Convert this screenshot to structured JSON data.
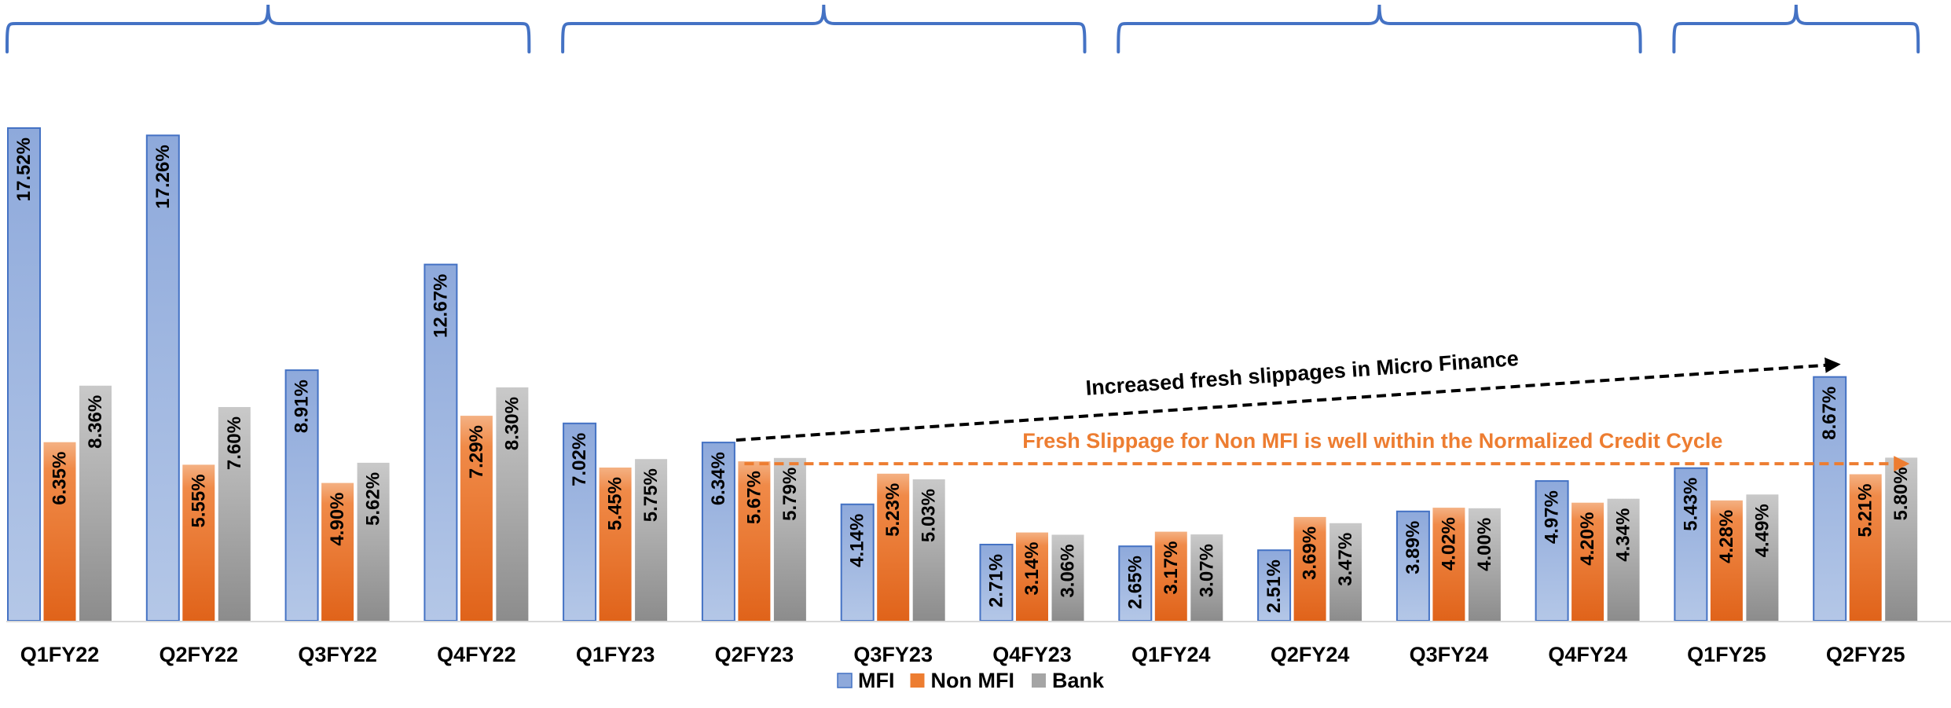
{
  "chart_data": {
    "type": "bar",
    "categories": [
      "Q1FY22",
      "Q2FY22",
      "Q3FY22",
      "Q4FY22",
      "Q1FY23",
      "Q2FY23",
      "Q3FY23",
      "Q4FY23",
      "Q1FY24",
      "Q2FY24",
      "Q3FY24",
      "Q4FY24",
      "Q1FY25",
      "Q2FY25"
    ],
    "series": [
      {
        "name": "MFI",
        "color": "#8EA9DB",
        "values": [
          17.52,
          17.26,
          8.91,
          12.67,
          7.02,
          6.34,
          4.14,
          2.71,
          2.65,
          2.51,
          3.89,
          4.97,
          5.43,
          8.67
        ],
        "labels": [
          "17.52%",
          "17.26%",
          "8.91%",
          "12.67%",
          "7.02%",
          "6.34%",
          "4.14%",
          "2.71%",
          "2.65%",
          "2.51%",
          "3.89%",
          "4.97%",
          "5.43%",
          "8.67%"
        ]
      },
      {
        "name": "Non MFI",
        "color": "#ED7D31",
        "values": [
          6.35,
          5.55,
          4.9,
          7.29,
          5.45,
          5.67,
          5.23,
          3.14,
          3.17,
          3.69,
          4.02,
          4.2,
          4.28,
          5.21
        ],
        "labels": [
          "6.35%",
          "5.55%",
          "4.90%",
          "7.29%",
          "5.45%",
          "5.67%",
          "5.23%",
          "3.14%",
          "3.17%",
          "3.69%",
          "4.02%",
          "4.20%",
          "4.28%",
          "5.21%"
        ]
      },
      {
        "name": "Bank",
        "color": "#A5A5A5",
        "values": [
          8.36,
          7.6,
          5.62,
          8.3,
          5.75,
          5.79,
          5.03,
          3.06,
          3.07,
          3.47,
          4.0,
          4.34,
          4.49,
          5.8
        ],
        "labels": [
          "8.36%",
          "7.60%",
          "5.62%",
          "8.30%",
          "5.75%",
          "5.79%",
          "5.03%",
          "3.06%",
          "3.07%",
          "3.47%",
          "4.00%",
          "4.34%",
          "4.49%",
          "5.80%"
        ]
      }
    ],
    "ylim": [
      0,
      17.52
    ],
    "legend_position": "bottom-center",
    "grid": false,
    "annotations": [
      {
        "text": "Increased fresh slippages in Micro Finance",
        "color": "#000000",
        "from_category": "Q2FY23",
        "to_category": "Q2FY25",
        "style": "dashed-arrow"
      },
      {
        "text": "Fresh Slippage for Non MFI is well within the Normalized Credit Cycle",
        "color": "#ED7D31",
        "from_category": "Q2FY23",
        "to_category": "Q2FY25",
        "style": "dashed-arrow"
      }
    ],
    "year_braces": [
      {
        "from_category": "Q1FY22",
        "to_category": "Q4FY22"
      },
      {
        "from_category": "Q1FY23",
        "to_category": "Q4FY23"
      },
      {
        "from_category": "Q1FY24",
        "to_category": "Q4FY24"
      },
      {
        "from_category": "Q1FY25",
        "to_category": "Q2FY25"
      }
    ]
  }
}
